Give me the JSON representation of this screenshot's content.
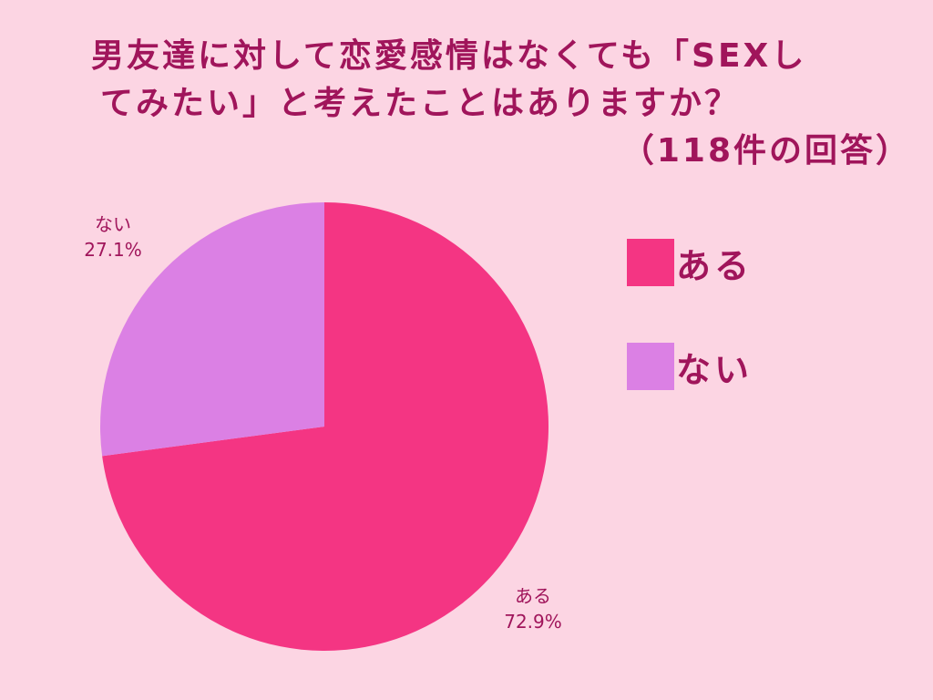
{
  "chart_data": {
    "type": "pie",
    "title": "男友達に対して恋愛感情はなくても「SEXしてみたい」と考えたことはありますか？（118件の回答）",
    "title_lines": [
      "男友達に対して恋愛感情はなくても「SEXし",
      "てみたい」と考えたことはありますか？",
      "（118件の回答）"
    ],
    "categories": [
      "ある",
      "ない"
    ],
    "values": [
      72.9,
      27.1
    ],
    "value_labels": [
      "72.9%",
      "27.1%"
    ],
    "colors": [
      "#f43583",
      "#db80e4"
    ],
    "legend": "right",
    "start_angle_deg": 0,
    "direction": "clockwise"
  },
  "colors": {
    "background": "#fcd5e3",
    "text": "#a0155b"
  }
}
